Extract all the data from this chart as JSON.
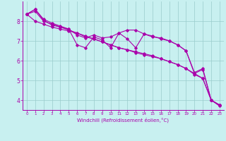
{
  "xlabel": "Windchill (Refroidissement éolien,°C)",
  "background_color": "#c8f0f0",
  "line_color": "#aa00aa",
  "grid_color": "#99cccc",
  "xlim": [
    -0.5,
    23.5
  ],
  "ylim": [
    3.5,
    9.0
  ],
  "yticks": [
    4,
    5,
    6,
    7,
    8
  ],
  "xticks": [
    0,
    1,
    2,
    3,
    4,
    5,
    6,
    7,
    8,
    9,
    10,
    11,
    12,
    13,
    14,
    15,
    16,
    17,
    18,
    19,
    20,
    21,
    22,
    23
  ],
  "line1_x": [
    0,
    1,
    2,
    3,
    4,
    5,
    6,
    7,
    8,
    9,
    10,
    11,
    12,
    13,
    14,
    15,
    16,
    17,
    18,
    19,
    20,
    21,
    22,
    23
  ],
  "line1_y": [
    8.35,
    8.6,
    8.1,
    7.9,
    7.75,
    7.6,
    7.3,
    7.15,
    7.3,
    7.15,
    7.2,
    7.4,
    7.55,
    7.55,
    7.35,
    7.25,
    7.1,
    7.0,
    6.8,
    6.5,
    5.4,
    5.6,
    4.0,
    3.75
  ],
  "line2_x": [
    0,
    1,
    2,
    3,
    4,
    5,
    6,
    7,
    8,
    9,
    10,
    11,
    12,
    13,
    14,
    15,
    16,
    17,
    18,
    19,
    20,
    21,
    22,
    23
  ],
  "line2_y": [
    8.35,
    8.6,
    8.05,
    7.8,
    7.7,
    7.6,
    6.8,
    6.65,
    7.2,
    7.05,
    6.65,
    7.4,
    7.1,
    6.65,
    7.35,
    7.2,
    7.15,
    7.0,
    6.8,
    6.5,
    5.35,
    5.55,
    4.0,
    3.75
  ],
  "line3_x": [
    0,
    1,
    2,
    3,
    4,
    5,
    6,
    7,
    8,
    9,
    10,
    11,
    12,
    13,
    14,
    15,
    16,
    17,
    18,
    19,
    20,
    21,
    22,
    23
  ],
  "line3_y": [
    8.35,
    8.0,
    7.85,
    7.7,
    7.6,
    7.5,
    7.4,
    7.25,
    7.1,
    6.95,
    6.8,
    6.65,
    6.55,
    6.45,
    6.35,
    6.25,
    6.1,
    5.95,
    5.8,
    5.6,
    5.35,
    5.1,
    4.0,
    3.75
  ],
  "line4_x": [
    0,
    1,
    2,
    3,
    4,
    5,
    6,
    7,
    8,
    9,
    10,
    11,
    12,
    13,
    14,
    15,
    16,
    17,
    18,
    19,
    20,
    21,
    22,
    23
  ],
  "line4_y": [
    8.35,
    8.5,
    8.0,
    7.85,
    7.7,
    7.55,
    7.4,
    7.2,
    7.1,
    6.95,
    6.8,
    6.65,
    6.55,
    6.4,
    6.3,
    6.2,
    6.1,
    5.95,
    5.8,
    5.6,
    5.3,
    5.1,
    4.0,
    3.7
  ]
}
